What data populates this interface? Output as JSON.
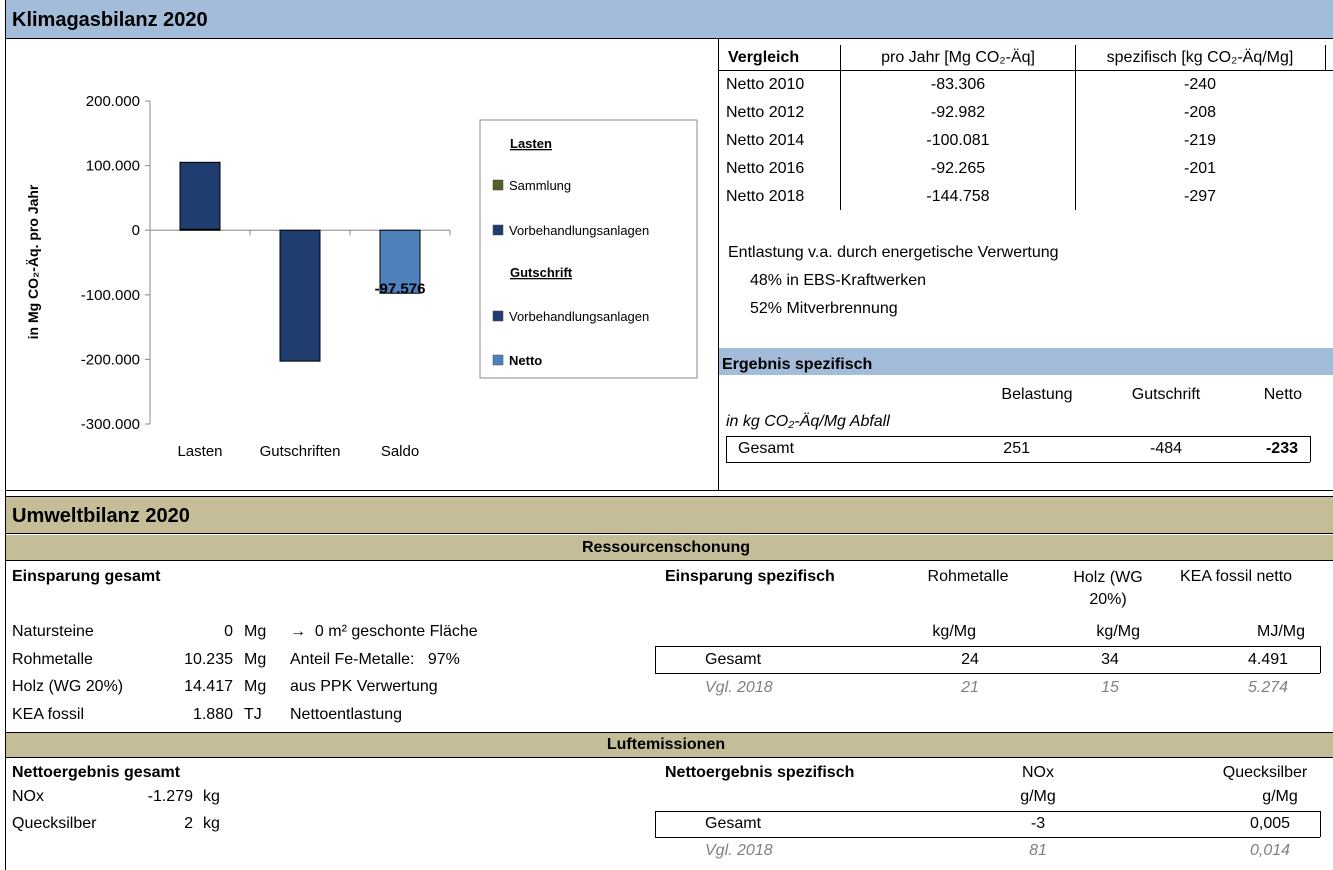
{
  "klima": {
    "title": "Klimagasbilanz 2020"
  },
  "chart_data": {
    "type": "bar",
    "stacked": true,
    "grid": false,
    "categories": [
      "Lasten",
      "Gutschriften",
      "Saldo"
    ],
    "ylabel": "in Mg CO₂-Äq. pro Jahr",
    "ylim": [
      -300000,
      200000
    ],
    "yticks": [
      {
        "value": -300000,
        "label": "-300.000"
      },
      {
        "value": -200000,
        "label": "-200.000"
      },
      {
        "value": -100000,
        "label": "-100.000"
      },
      0,
      {
        "value": 100000,
        "label": "100.000"
      },
      {
        "value": 200000,
        "label": "200.000"
      }
    ],
    "legend_headings": [
      "Lasten",
      "Gutschrift"
    ],
    "series": [
      {
        "name": "Sammlung",
        "color": "#4f6228",
        "values": [
          1500,
          null,
          null
        ]
      },
      {
        "name": "Vorbehandlungsanlagen",
        "color": "#1f3d6e",
        "values": [
          103600,
          null,
          null
        ]
      },
      {
        "name": "Vorbehandlungsanlagen",
        "color": "#1f3d6e",
        "values": [
          null,
          -202700,
          null
        ]
      },
      {
        "name": "Netto",
        "color": "#4f81bd",
        "values": [
          null,
          null,
          -97576
        ],
        "value_labels": [
          null,
          null,
          "-97.576"
        ]
      }
    ]
  },
  "vergleich": {
    "header": [
      "Vergleich",
      "pro Jahr [Mg CO₂-Äq]",
      "spezifisch [kg CO₂-Äq/Mg]"
    ],
    "rows": [
      [
        "Netto 2010",
        "-83.306",
        "-240"
      ],
      [
        "Netto 2012",
        "-92.982",
        "-208"
      ],
      [
        "Netto 2014",
        "-100.081",
        "-219"
      ],
      [
        "Netto 2016",
        "-92.265",
        "-201"
      ],
      [
        "Netto 2018",
        "-144.758",
        "-297"
      ]
    ]
  },
  "entlastung": {
    "text": "Entlastung v.a. durch energetische Verwertung",
    "lines": [
      "48% in EBS-Kraftwerken",
      "52% Mitverbrennung"
    ]
  },
  "ergebnis": {
    "title": "Ergebnis spezifisch",
    "columns": [
      "Belastung",
      "Gutschrift",
      "Netto"
    ],
    "unit": "in kg CO₂-Äq/Mg Abfall",
    "row": [
      "Gesamt",
      "251",
      "-484",
      "-233"
    ]
  },
  "umwelt": {
    "title": "Umweltbilanz 2020",
    "ressourcen": {
      "title": "Ressourcenschonung",
      "left_title": "Einsparung gesamt",
      "left_rows": [
        [
          "Natursteine",
          "0",
          "Mg",
          "→  0 m² geschonte Fläche"
        ],
        [
          "Rohmetalle",
          "10.235",
          "Mg",
          "Anteil Fe-Metalle:   97%"
        ],
        [
          "Holz (WG 20%)",
          "14.417",
          "Mg",
          "aus PPK Verwertung"
        ],
        [
          "KEA fossil",
          "1.880",
          "TJ",
          "Nettoentlastung"
        ]
      ],
      "right_title": "Einsparung spezifisch",
      "columns": [
        "Rohmetalle",
        "Holz (WG 20%)",
        "KEA fossil netto"
      ],
      "units": [
        "kg/Mg",
        "kg/Mg",
        "MJ/Mg"
      ],
      "rows": [
        [
          "Gesamt",
          "24",
          "34",
          "4.491"
        ],
        [
          "Vgl. 2018",
          "21",
          "15",
          "5.274"
        ]
      ]
    },
    "luft": {
      "title": "Luftemissionen",
      "left_title": "Nettoergebnis gesamt",
      "left_rows": [
        [
          "NOx",
          "-1.279",
          "kg"
        ],
        [
          "Quecksilber",
          "2",
          "kg"
        ]
      ],
      "right_title": "Nettoergebnis spezifisch",
      "columns": [
        "NOx",
        "Quecksilber"
      ],
      "units": [
        "g/Mg",
        "g/Mg"
      ],
      "rows": [
        [
          "Gesamt",
          "-3",
          "0,005"
        ],
        [
          "Vgl. 2018",
          "81",
          "0,014"
        ]
      ]
    }
  }
}
